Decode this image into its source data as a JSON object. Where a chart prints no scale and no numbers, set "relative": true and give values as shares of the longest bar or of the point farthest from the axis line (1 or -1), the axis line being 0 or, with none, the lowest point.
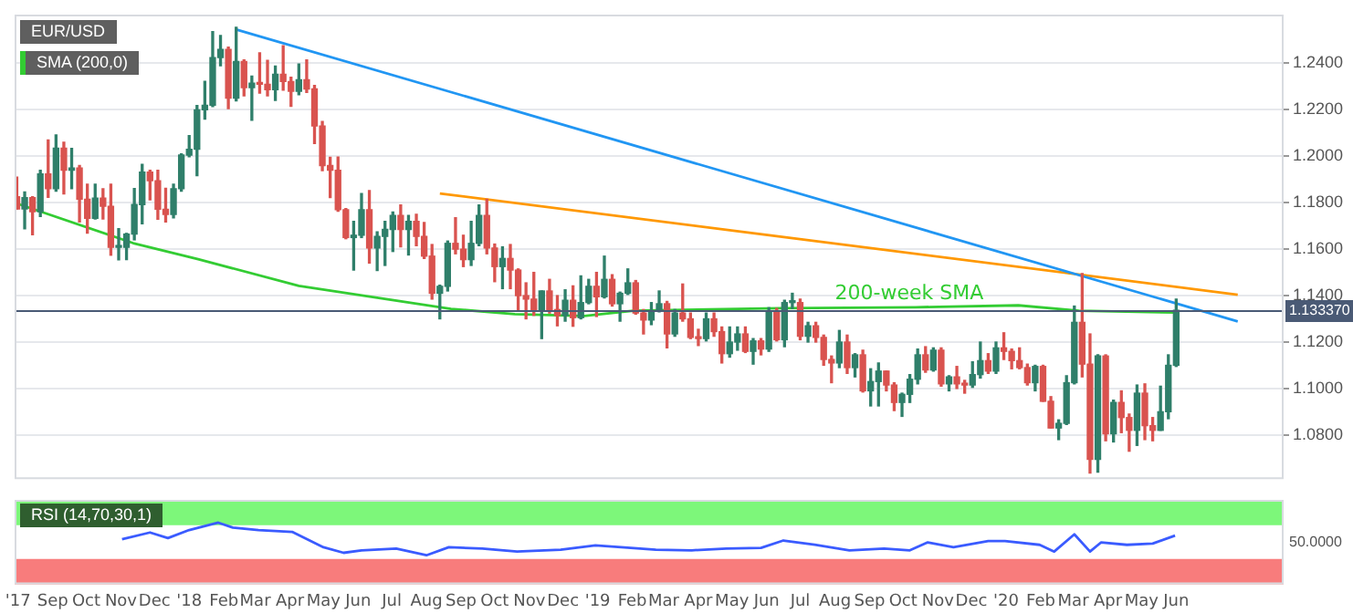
{
  "chart_data": [
    {
      "type": "candlestick",
      "title": "EUR/USD",
      "legend": "top left",
      "tick_labels": "y",
      "grid": true,
      "xlim": [
        "2017-07-29",
        "2020-09-05"
      ],
      "xticks": [
        {
          "value": "2018-01-01",
          "label": null
        },
        {
          "value": "2019-01-01",
          "label": null
        },
        {
          "value": "2020-01-01",
          "label": null
        }
      ],
      "ylim": [
        1.061,
        1.261
      ],
      "yticks": [
        {
          "value": 1.08,
          "label": "1.0800"
        },
        {
          "value": 1.1,
          "label": "1.1000"
        },
        {
          "value": 1.12,
          "label": "1.1200"
        },
        {
          "value": 1.14,
          "label": "1.1400"
        },
        {
          "value": 1.16,
          "label": "1.1600"
        },
        {
          "value": 1.18,
          "label": "1.1800"
        },
        {
          "value": 1.2,
          "label": "1.2000"
        },
        {
          "value": 1.22,
          "label": "1.2200"
        },
        {
          "value": 1.24,
          "label": "1.2400"
        }
      ],
      "ref_lines": [
        {
          "axis": "y",
          "value": 1.13337,
          "label": "1.133370",
          "color": "#4a5a75"
        }
      ],
      "annotations": [
        {
          "text": "200-week SMA",
          "x": "2019-08-01",
          "y": 1.1365
        }
      ],
      "x": [
        "2017-07-31",
        "2017-08-07",
        "2017-08-14",
        "2017-08-21",
        "2017-08-28",
        "2017-09-04",
        "2017-09-11",
        "2017-09-18",
        "2017-09-25",
        "2017-10-02",
        "2017-10-09",
        "2017-10-16",
        "2017-10-23",
        "2017-10-30",
        "2017-11-06",
        "2017-11-13",
        "2017-11-20",
        "2017-11-27",
        "2017-12-04",
        "2017-12-11",
        "2017-12-18",
        "2017-12-25",
        "2018-01-01",
        "2018-01-08",
        "2018-01-15",
        "2018-01-22",
        "2018-01-29",
        "2018-02-05",
        "2018-02-12",
        "2018-02-19",
        "2018-02-26",
        "2018-03-05",
        "2018-03-12",
        "2018-03-19",
        "2018-03-26",
        "2018-04-02",
        "2018-04-09",
        "2018-04-16",
        "2018-04-23",
        "2018-04-30",
        "2018-05-07",
        "2018-05-14",
        "2018-05-21",
        "2018-05-28",
        "2018-06-04",
        "2018-06-11",
        "2018-06-18",
        "2018-06-25",
        "2018-07-02",
        "2018-07-09",
        "2018-07-16",
        "2018-07-23",
        "2018-07-30",
        "2018-08-06",
        "2018-08-13",
        "2018-08-20",
        "2018-08-27",
        "2018-09-03",
        "2018-09-10",
        "2018-09-17",
        "2018-09-24",
        "2018-10-01",
        "2018-10-08",
        "2018-10-15",
        "2018-10-22",
        "2018-10-29",
        "2018-11-05",
        "2018-11-12",
        "2018-11-19",
        "2018-11-26",
        "2018-12-03",
        "2018-12-10",
        "2018-12-17",
        "2018-12-24",
        "2018-12-31",
        "2019-01-07",
        "2019-01-14",
        "2019-01-21",
        "2019-01-28",
        "2019-02-04",
        "2019-02-11",
        "2019-02-18",
        "2019-02-25",
        "2019-03-04",
        "2019-03-11",
        "2019-03-18",
        "2019-03-25",
        "2019-04-01",
        "2019-04-08",
        "2019-04-15",
        "2019-04-22",
        "2019-04-29",
        "2019-05-06",
        "2019-05-13",
        "2019-05-20",
        "2019-05-27",
        "2019-06-03",
        "2019-06-10",
        "2019-06-17",
        "2019-06-24",
        "2019-07-01",
        "2019-07-08",
        "2019-07-15",
        "2019-07-22",
        "2019-07-29",
        "2019-08-05",
        "2019-08-12",
        "2019-08-19",
        "2019-08-26",
        "2019-09-02",
        "2019-09-09",
        "2019-09-16",
        "2019-09-23",
        "2019-09-30",
        "2019-10-07",
        "2019-10-14",
        "2019-10-21",
        "2019-10-28",
        "2019-11-04",
        "2019-11-11",
        "2019-11-18",
        "2019-11-25",
        "2019-12-02",
        "2019-12-09",
        "2019-12-16",
        "2019-12-23",
        "2019-12-30",
        "2020-01-06",
        "2020-01-13",
        "2020-01-20",
        "2020-01-27",
        "2020-02-03",
        "2020-02-10",
        "2020-02-17",
        "2020-02-24",
        "2020-03-02",
        "2020-03-09",
        "2020-03-16",
        "2020-03-23",
        "2020-03-30",
        "2020-04-06",
        "2020-04-13",
        "2020-04-20",
        "2020-04-27",
        "2020-05-04",
        "2020-05-11",
        "2020-05-18",
        "2020-05-25",
        "2020-06-01"
      ],
      "ohlc": [
        [
          1.1826,
          1.191,
          1.1773,
          1.1773
        ],
        [
          1.1773,
          1.1846,
          1.1688,
          1.1822
        ],
        [
          1.1822,
          1.1826,
          1.1662,
          1.1761
        ],
        [
          1.1761,
          1.194,
          1.1741,
          1.1924
        ],
        [
          1.1924,
          1.207,
          1.1823,
          1.186
        ],
        [
          1.186,
          1.2092,
          1.185,
          1.2035
        ],
        [
          1.2035,
          1.206,
          1.1838,
          1.194
        ],
        [
          1.194,
          1.2034,
          1.186,
          1.195
        ],
        [
          1.195,
          1.196,
          1.1717,
          1.1815
        ],
        [
          1.1815,
          1.188,
          1.1669,
          1.1733
        ],
        [
          1.1733,
          1.188,
          1.173,
          1.182
        ],
        [
          1.182,
          1.186,
          1.173,
          1.1785
        ],
        [
          1.1785,
          1.188,
          1.1574,
          1.1608
        ],
        [
          1.1608,
          1.1688,
          1.1554,
          1.1608
        ],
        [
          1.1608,
          1.1668,
          1.1555,
          1.1665
        ],
        [
          1.1665,
          1.1861,
          1.164,
          1.1792
        ],
        [
          1.1792,
          1.1965,
          1.1709,
          1.1932
        ],
        [
          1.1932,
          1.194,
          1.1812,
          1.1895
        ],
        [
          1.1895,
          1.194,
          1.1729,
          1.1772
        ],
        [
          1.1772,
          1.1862,
          1.1717,
          1.1749
        ],
        [
          1.1749,
          1.188,
          1.1735,
          1.186
        ],
        [
          1.186,
          1.201,
          1.185,
          1.2005
        ],
        [
          1.2005,
          1.2089,
          1.1998,
          1.203
        ],
        [
          1.203,
          1.2219,
          1.1916,
          1.22
        ],
        [
          1.22,
          1.2323,
          1.216,
          1.222
        ],
        [
          1.222,
          1.2537,
          1.2214,
          1.2425
        ],
        [
          1.2425,
          1.252,
          1.239,
          1.246
        ],
        [
          1.246,
          1.247,
          1.2205,
          1.225
        ],
        [
          1.225,
          1.2555,
          1.2238,
          1.2408
        ],
        [
          1.2408,
          1.2415,
          1.226,
          1.2295
        ],
        [
          1.2295,
          1.2345,
          1.2155,
          1.2315
        ],
        [
          1.2315,
          1.2445,
          1.2272,
          1.231
        ],
        [
          1.231,
          1.2413,
          1.226,
          1.2287
        ],
        [
          1.2287,
          1.2388,
          1.224,
          1.2353
        ],
        [
          1.2353,
          1.2476,
          1.2285,
          1.2322
        ],
        [
          1.2322,
          1.234,
          1.2215,
          1.228
        ],
        [
          1.228,
          1.2397,
          1.2265,
          1.233
        ],
        [
          1.233,
          1.2415,
          1.2275,
          1.229
        ],
        [
          1.229,
          1.2305,
          1.2055,
          1.213
        ],
        [
          1.213,
          1.215,
          1.1938,
          1.196
        ],
        [
          1.196,
          1.1996,
          1.1822,
          1.194
        ],
        [
          1.194,
          1.1997,
          1.1763,
          1.177
        ],
        [
          1.177,
          1.1775,
          1.1645,
          1.165
        ],
        [
          1.165,
          1.172,
          1.151,
          1.166
        ],
        [
          1.166,
          1.184,
          1.165,
          1.177
        ],
        [
          1.177,
          1.1852,
          1.154,
          1.1605
        ],
        [
          1.1605,
          1.1675,
          1.1508,
          1.1655
        ],
        [
          1.1655,
          1.172,
          1.153,
          1.1685
        ],
        [
          1.1685,
          1.176,
          1.159,
          1.1745
        ],
        [
          1.1745,
          1.179,
          1.161,
          1.1685
        ],
        [
          1.1685,
          1.1745,
          1.1575,
          1.172
        ],
        [
          1.172,
          1.175,
          1.1615,
          1.1655
        ],
        [
          1.1655,
          1.1715,
          1.156,
          1.157
        ],
        [
          1.157,
          1.162,
          1.1385,
          1.141
        ],
        [
          1.141,
          1.1445,
          1.13,
          1.144
        ],
        [
          1.144,
          1.1635,
          1.142,
          1.1625
        ],
        [
          1.1625,
          1.1735,
          1.158,
          1.16
        ],
        [
          1.16,
          1.166,
          1.1525,
          1.1555
        ],
        [
          1.1555,
          1.172,
          1.153,
          1.1625
        ],
        [
          1.1625,
          1.179,
          1.1615,
          1.1745
        ],
        [
          1.1745,
          1.1815,
          1.158,
          1.1605
        ],
        [
          1.1605,
          1.1622,
          1.146,
          1.1525
        ],
        [
          1.1525,
          1.161,
          1.143,
          1.156
        ],
        [
          1.156,
          1.162,
          1.143,
          1.151
        ],
        [
          1.151,
          1.1515,
          1.1335,
          1.14
        ],
        [
          1.14,
          1.1455,
          1.13,
          1.1385
        ],
        [
          1.1385,
          1.15,
          1.1315,
          1.1335
        ],
        [
          1.1335,
          1.142,
          1.1215,
          1.142
        ],
        [
          1.142,
          1.147,
          1.1325,
          1.134
        ],
        [
          1.134,
          1.14,
          1.127,
          1.1315
        ],
        [
          1.1315,
          1.1425,
          1.129,
          1.138
        ],
        [
          1.138,
          1.1442,
          1.1268,
          1.1305
        ],
        [
          1.1305,
          1.1485,
          1.13,
          1.137
        ],
        [
          1.137,
          1.147,
          1.1365,
          1.144
        ],
        [
          1.144,
          1.15,
          1.131,
          1.1395
        ],
        [
          1.1395,
          1.157,
          1.139,
          1.147
        ],
        [
          1.147,
          1.149,
          1.1355,
          1.1365
        ],
        [
          1.1365,
          1.1415,
          1.129,
          1.141
        ],
        [
          1.141,
          1.1515,
          1.1405,
          1.1455
        ],
        [
          1.1455,
          1.1465,
          1.132,
          1.1325
        ],
        [
          1.1325,
          1.134,
          1.1235,
          1.1295
        ],
        [
          1.1295,
          1.137,
          1.1275,
          1.1335
        ],
        [
          1.1335,
          1.142,
          1.133,
          1.1365
        ],
        [
          1.1365,
          1.1375,
          1.1175,
          1.1235
        ],
        [
          1.1235,
          1.134,
          1.1225,
          1.1325
        ],
        [
          1.1325,
          1.145,
          1.129,
          1.13
        ],
        [
          1.13,
          1.1325,
          1.1215,
          1.122
        ],
        [
          1.122,
          1.1255,
          1.1185,
          1.1215
        ],
        [
          1.1215,
          1.1325,
          1.1205,
          1.13
        ],
        [
          1.13,
          1.1325,
          1.1225,
          1.1245
        ],
        [
          1.1245,
          1.1265,
          1.111,
          1.115
        ],
        [
          1.115,
          1.1265,
          1.1135,
          1.12
        ],
        [
          1.12,
          1.1265,
          1.1165,
          1.1235
        ],
        [
          1.1235,
          1.1265,
          1.1155,
          1.116
        ],
        [
          1.116,
          1.1215,
          1.1105,
          1.1205
        ],
        [
          1.1205,
          1.1215,
          1.1145,
          1.117
        ],
        [
          1.117,
          1.1348,
          1.116,
          1.1335
        ],
        [
          1.1335,
          1.1345,
          1.1205,
          1.121
        ],
        [
          1.121,
          1.138,
          1.118,
          1.137
        ],
        [
          1.137,
          1.141,
          1.1345,
          1.137
        ],
        [
          1.137,
          1.1385,
          1.121,
          1.1225
        ],
        [
          1.1225,
          1.1285,
          1.12,
          1.127
        ],
        [
          1.127,
          1.1285,
          1.12,
          1.122
        ],
        [
          1.122,
          1.123,
          1.11,
          1.1125
        ],
        [
          1.1125,
          1.114,
          1.1025,
          1.111
        ],
        [
          1.111,
          1.125,
          1.109,
          1.12
        ],
        [
          1.12,
          1.123,
          1.1065,
          1.109
        ],
        [
          1.109,
          1.115,
          1.105,
          1.1145
        ],
        [
          1.1145,
          1.1165,
          1.0985,
          1.099
        ],
        [
          1.099,
          1.1085,
          1.0925,
          1.103
        ],
        [
          1.103,
          1.111,
          1.0925,
          1.1075
        ],
        [
          1.1075,
          1.1075,
          1.099,
          1.1015
        ],
        [
          1.1015,
          1.1025,
          1.0905,
          1.094
        ],
        [
          1.094,
          1.098,
          1.088,
          1.0975
        ],
        [
          1.0975,
          1.106,
          1.094,
          1.104
        ],
        [
          1.104,
          1.117,
          1.102,
          1.1145
        ],
        [
          1.1145,
          1.118,
          1.107,
          1.108
        ],
        [
          1.108,
          1.1175,
          1.1075,
          1.1165
        ],
        [
          1.1165,
          1.1175,
          1.101,
          1.102
        ],
        [
          1.102,
          1.1055,
          1.099,
          1.105
        ],
        [
          1.105,
          1.1095,
          1.1,
          1.102
        ],
        [
          1.102,
          1.1035,
          1.098,
          1.1015
        ],
        [
          1.1015,
          1.1115,
          1.1005,
          1.106
        ],
        [
          1.106,
          1.12,
          1.1045,
          1.112
        ],
        [
          1.112,
          1.115,
          1.1065,
          1.1075
        ],
        [
          1.1075,
          1.12,
          1.1065,
          1.1175
        ],
        [
          1.1175,
          1.124,
          1.1125,
          1.116
        ],
        [
          1.116,
          1.117,
          1.1085,
          1.112
        ],
        [
          1.112,
          1.1175,
          1.1085,
          1.109
        ],
        [
          1.109,
          1.1105,
          1.1015,
          1.1025
        ],
        [
          1.1025,
          1.11,
          1.099,
          1.1095
        ],
        [
          1.1095,
          1.11,
          1.0945,
          1.0945
        ],
        [
          1.0945,
          1.0965,
          1.083,
          1.083
        ],
        [
          1.083,
          1.0865,
          1.078,
          1.085
        ],
        [
          1.085,
          1.1055,
          1.0845,
          1.1025
        ],
        [
          1.1025,
          1.1355,
          1.102,
          1.1285
        ],
        [
          1.1285,
          1.1495,
          1.105,
          1.1105
        ],
        [
          1.1105,
          1.1235,
          1.0636,
          1.0695
        ],
        [
          1.0695,
          1.1145,
          1.064,
          1.114
        ],
        [
          1.114,
          1.1145,
          1.0775,
          1.0805
        ],
        [
          1.0805,
          1.095,
          1.077,
          1.094
        ],
        [
          1.094,
          1.099,
          1.081,
          1.0875
        ],
        [
          1.0875,
          1.089,
          1.073,
          1.082
        ],
        [
          1.082,
          1.1015,
          1.0755,
          1.098
        ],
        [
          1.098,
          1.102,
          1.078,
          1.084
        ],
        [
          1.084,
          1.0875,
          1.0775,
          1.082
        ],
        [
          1.082,
          1.101,
          1.082,
          1.09
        ],
        [
          1.09,
          1.1145,
          1.087,
          1.11
        ],
        [
          1.11,
          1.1385,
          1.1095,
          1.1337
        ]
      ],
      "series": [
        {
          "name": "SMA (200,0)",
          "type": "line",
          "color": "#33cc33",
          "x": [
            "2017-08-01",
            "2017-11-12",
            "2018-01-09",
            "2018-04-09",
            "2018-06-22",
            "2018-08-23",
            "2018-10-19",
            "2018-12-20",
            "2019-02-02",
            "2019-06-13",
            "2019-10-12",
            "2020-01-12",
            "2020-03-06",
            "2020-06-01"
          ],
          "values": [
            1.1795,
            1.1626,
            1.1557,
            1.1442,
            1.1388,
            1.1343,
            1.132,
            1.1312,
            1.1335,
            1.1346,
            1.135,
            1.1358,
            1.1335,
            1.1327
          ]
        },
        {
          "type": "line",
          "color": "#2196f3",
          "x": [
            "2018-02-12",
            "2020-07-26"
          ],
          "values": [
            1.2546,
            1.1289
          ]
        },
        {
          "type": "line",
          "color": "#ff9800",
          "x": [
            "2018-08-13",
            "2020-07-26"
          ],
          "values": [
            1.184,
            1.1404
          ]
        }
      ]
    },
    {
      "type": "line",
      "title": "RSI (14,70,30,1)",
      "grid": false,
      "relative": true,
      "annotations": [
        "50.0000"
      ],
      "xlim": [
        "2017-07-29",
        "2020-09-05"
      ],
      "xticks": [
        {
          "value": "2017-08-01",
          "label": "'17"
        },
        {
          "value": "2017-09-01",
          "label": "Sep"
        },
        {
          "value": "2017-10-01",
          "label": "Oct"
        },
        {
          "value": "2017-11-01",
          "label": "Nov"
        },
        {
          "value": "2017-12-01",
          "label": "Dec"
        },
        {
          "value": "2018-01-01",
          "label": "'18"
        },
        {
          "value": "2018-02-01",
          "label": "Feb"
        },
        {
          "value": "2018-03-01",
          "label": "Mar"
        },
        {
          "value": "2018-04-01",
          "label": "Apr"
        },
        {
          "value": "2018-05-01",
          "label": "May"
        },
        {
          "value": "2018-06-01",
          "label": "Jun"
        },
        {
          "value": "2018-07-01",
          "label": "Jul"
        },
        {
          "value": "2018-08-01",
          "label": "Aug"
        },
        {
          "value": "2018-09-01",
          "label": "Sep"
        },
        {
          "value": "2018-10-01",
          "label": "Oct"
        },
        {
          "value": "2018-11-01",
          "label": "Nov"
        },
        {
          "value": "2018-12-01",
          "label": "Dec"
        },
        {
          "value": "2019-01-01",
          "label": "'19"
        },
        {
          "value": "2019-02-01",
          "label": "Feb"
        },
        {
          "value": "2019-03-01",
          "label": "Mar"
        },
        {
          "value": "2019-04-01",
          "label": "Apr"
        },
        {
          "value": "2019-05-01",
          "label": "May"
        },
        {
          "value": "2019-06-01",
          "label": "Jun"
        },
        {
          "value": "2019-07-01",
          "label": "Jul"
        },
        {
          "value": "2019-08-01",
          "label": "Aug"
        },
        {
          "value": "2019-09-01",
          "label": "Sep"
        },
        {
          "value": "2019-10-01",
          "label": "Oct"
        },
        {
          "value": "2019-11-01",
          "label": "Nov"
        },
        {
          "value": "2019-12-01",
          "label": "Dec"
        },
        {
          "value": "2020-01-01",
          "label": "'20"
        },
        {
          "value": "2020-02-01",
          "label": "Feb"
        },
        {
          "value": "2020-03-01",
          "label": "Mar"
        },
        {
          "value": "2020-04-01",
          "label": "Apr"
        },
        {
          "value": "2020-05-01",
          "label": "May"
        },
        {
          "value": "2020-06-01",
          "label": "Jun"
        }
      ],
      "bands": [
        {
          "axis": "y",
          "from": 0.96,
          "to": 1.37,
          "color": "#7df77a"
        },
        {
          "axis": "y",
          "from": 0,
          "to": 0.41,
          "color": "#f87c7c"
        }
      ],
      "series": [
        {
          "color": "#3a5bff",
          "x": [
            "2017-11-02",
            "2017-11-27",
            "2017-12-13",
            "2018-01-01",
            "2018-01-27",
            "2018-02-09",
            "2018-03-04",
            "2018-04-03",
            "2018-05-01",
            "2018-05-19",
            "2018-06-04",
            "2018-07-05",
            "2018-08-01",
            "2018-08-21",
            "2018-09-20",
            "2018-10-21",
            "2018-11-29",
            "2018-12-30",
            "2019-01-22",
            "2019-02-22",
            "2019-03-26",
            "2019-04-26",
            "2019-05-27",
            "2019-06-16",
            "2019-07-14",
            "2019-08-14",
            "2019-09-14",
            "2019-10-07",
            "2019-10-23",
            "2019-11-15",
            "2019-12-16",
            "2019-12-31",
            "2020-01-31",
            "2020-02-13",
            "2020-03-02",
            "2020-03-16",
            "2020-03-26",
            "2020-04-18",
            "2020-05-11",
            "2020-05-31"
          ],
          "values": [
            0.73,
            0.84,
            0.75,
            0.88,
            1,
            0.92,
            0.88,
            0.85,
            0.6,
            0.51,
            0.55,
            0.58,
            0.47,
            0.6,
            0.58,
            0.53,
            0.56,
            0.63,
            0.6,
            0.56,
            0.55,
            0.58,
            0.59,
            0.71,
            0.64,
            0.55,
            0.58,
            0.55,
            0.68,
            0.6,
            0.7,
            0.7,
            0.64,
            0.53,
            0.81,
            0.53,
            0.68,
            0.64,
            0.66,
            0.79
          ]
        }
      ]
    }
  ]
}
